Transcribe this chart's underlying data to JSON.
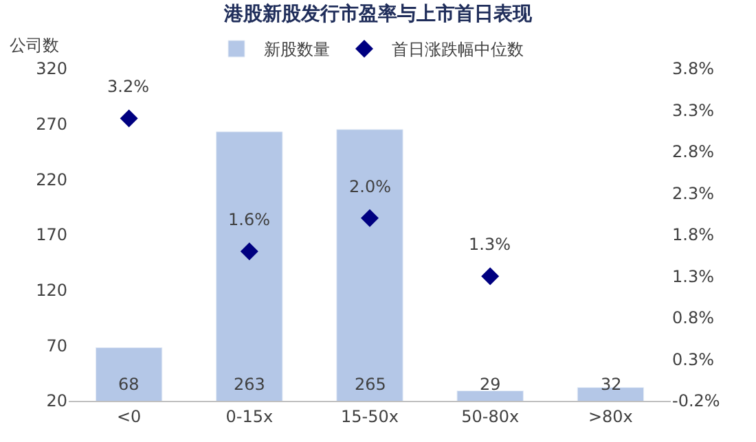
{
  "chart_data": {
    "type": "bar",
    "title": "港股新股发行市盈率与上市首日表现",
    "ylabel": "公司数",
    "categories": [
      "<0",
      "0-15x",
      "15-50x",
      "50-80x",
      ">80x"
    ],
    "series": [
      {
        "name": "新股数量",
        "color": "#b4c7e7",
        "values": [
          68,
          263,
          265,
          29,
          32
        ],
        "value_labels": [
          "68",
          "263",
          "265",
          "29",
          "32"
        ]
      },
      {
        "name": "首日涨跌幅中位数",
        "type": "scatter",
        "axis": "y2",
        "marker": "diamond",
        "color": "#000080",
        "values": [
          3.2,
          1.6,
          2.0,
          1.3,
          null
        ],
        "value_labels": [
          "3.2%",
          "1.6%",
          "2.0%",
          "1.3%",
          null
        ]
      }
    ],
    "ylim": [
      20,
      320
    ],
    "yticks": [
      20,
      70,
      120,
      170,
      220,
      270,
      320
    ],
    "y2lim": [
      -0.2,
      3.8
    ],
    "y2ticks": [
      {
        "value": -0.2,
        "label": "-0.2%"
      },
      {
        "value": 0.3,
        "label": "0.3%"
      },
      {
        "value": 0.8,
        "label": "0.8%"
      },
      {
        "value": 1.3,
        "label": "1.3%"
      },
      {
        "value": 1.8,
        "label": "1.8%"
      },
      {
        "value": 2.3,
        "label": "2.3%"
      },
      {
        "value": 2.8,
        "label": "2.8%"
      },
      {
        "value": 3.3,
        "label": "3.3%"
      },
      {
        "value": 3.8,
        "label": "3.8%"
      }
    ],
    "legend": "top"
  }
}
